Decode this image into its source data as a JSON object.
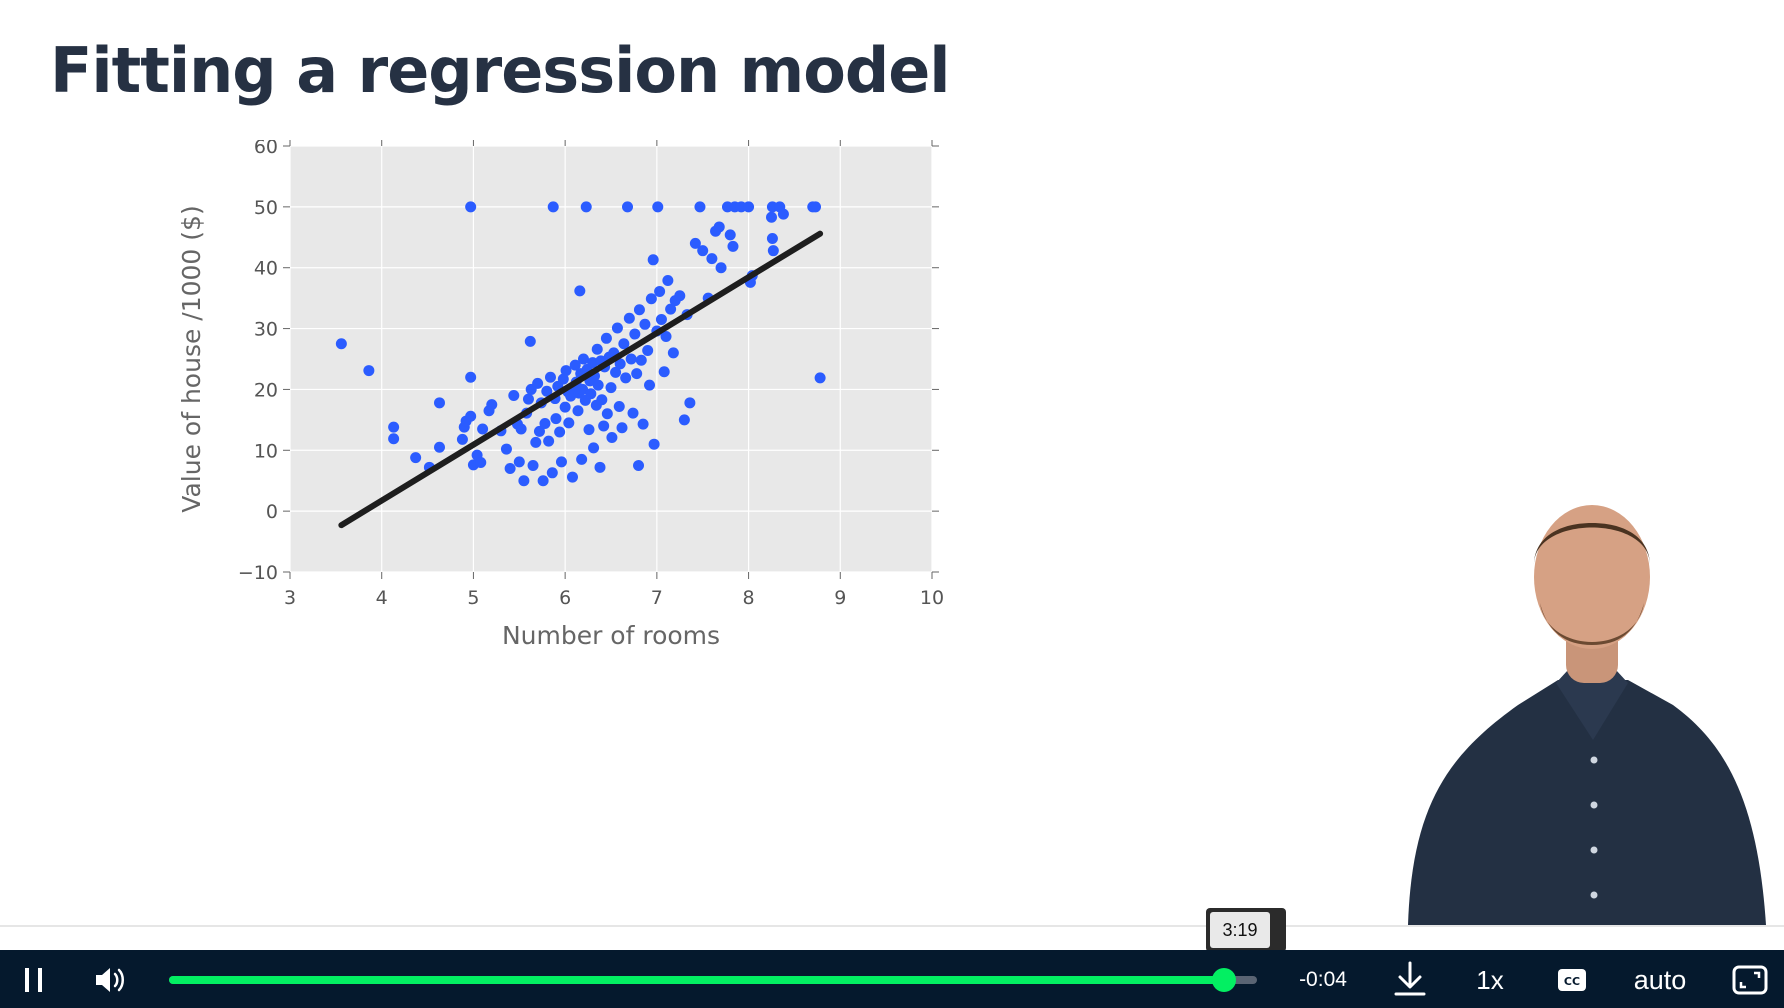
{
  "slide": {
    "title": "Fitting a regression model"
  },
  "chart_data": {
    "type": "scatter",
    "xlabel": "Number of rooms",
    "ylabel": "Value of house /1000 ($)",
    "xlim": [
      3,
      10
    ],
    "ylim": [
      -10,
      60
    ],
    "xticks": [
      "3",
      "4",
      "5",
      "6",
      "7",
      "8",
      "9",
      "10"
    ],
    "yticks": [
      "−10",
      "0",
      "10",
      "20",
      "30",
      "40",
      "50",
      "60"
    ],
    "grid": true,
    "colors": {
      "points": "#2b5cff",
      "line": "#1e1e1e",
      "background": "#e8e8e8"
    },
    "points": [
      [
        3.56,
        27.5
      ],
      [
        3.86,
        23.1
      ],
      [
        4.13,
        13.8
      ],
      [
        4.13,
        11.9
      ],
      [
        4.37,
        8.8
      ],
      [
        4.52,
        7.2
      ],
      [
        4.63,
        17.8
      ],
      [
        4.63,
        10.5
      ],
      [
        4.88,
        11.8
      ],
      [
        4.9,
        13.8
      ],
      [
        4.92,
        14.8
      ],
      [
        4.97,
        15.6
      ],
      [
        4.97,
        22.0
      ],
      [
        4.97,
        50.0
      ],
      [
        5.0,
        7.6
      ],
      [
        5.04,
        9.2
      ],
      [
        5.08,
        8.0
      ],
      [
        5.1,
        13.5
      ],
      [
        5.17,
        16.5
      ],
      [
        5.2,
        17.5
      ],
      [
        5.3,
        13.2
      ],
      [
        5.36,
        10.2
      ],
      [
        5.4,
        7.0
      ],
      [
        5.44,
        19.0
      ],
      [
        5.48,
        14.3
      ],
      [
        5.5,
        8.1
      ],
      [
        5.52,
        13.5
      ],
      [
        5.55,
        5.0
      ],
      [
        5.58,
        16.1
      ],
      [
        5.6,
        18.4
      ],
      [
        5.62,
        27.9
      ],
      [
        5.63,
        20.0
      ],
      [
        5.65,
        7.5
      ],
      [
        5.68,
        11.3
      ],
      [
        5.7,
        21.0
      ],
      [
        5.72,
        13.1
      ],
      [
        5.74,
        17.8
      ],
      [
        5.76,
        5.0
      ],
      [
        5.78,
        14.4
      ],
      [
        5.8,
        19.7
      ],
      [
        5.82,
        11.5
      ],
      [
        5.84,
        22.0
      ],
      [
        5.86,
        6.3
      ],
      [
        5.87,
        50.0
      ],
      [
        5.89,
        18.5
      ],
      [
        5.9,
        15.2
      ],
      [
        5.92,
        20.5
      ],
      [
        5.94,
        13.0
      ],
      [
        5.96,
        8.1
      ],
      [
        5.98,
        21.7
      ],
      [
        6.0,
        17.1
      ],
      [
        6.01,
        23.1
      ],
      [
        6.03,
        19.6
      ],
      [
        6.04,
        14.5
      ],
      [
        6.06,
        18.9
      ],
      [
        6.08,
        5.6
      ],
      [
        6.09,
        20.1
      ],
      [
        6.11,
        24.0
      ],
      [
        6.12,
        21.2
      ],
      [
        6.14,
        16.5
      ],
      [
        6.15,
        19.4
      ],
      [
        6.16,
        36.2
      ],
      [
        6.17,
        22.6
      ],
      [
        6.18,
        8.5
      ],
      [
        6.19,
        20.0
      ],
      [
        6.2,
        25.0
      ],
      [
        6.22,
        18.2
      ],
      [
        6.23,
        50.0
      ],
      [
        6.24,
        23.3
      ],
      [
        6.26,
        13.4
      ],
      [
        6.27,
        21.4
      ],
      [
        6.28,
        19.3
      ],
      [
        6.3,
        24.4
      ],
      [
        6.31,
        10.4
      ],
      [
        6.32,
        22.2
      ],
      [
        6.34,
        17.4
      ],
      [
        6.35,
        26.6
      ],
      [
        6.36,
        20.7
      ],
      [
        6.38,
        7.2
      ],
      [
        6.39,
        24.7
      ],
      [
        6.4,
        18.3
      ],
      [
        6.42,
        14.0
      ],
      [
        6.43,
        23.7
      ],
      [
        6.45,
        28.4
      ],
      [
        6.46,
        16.0
      ],
      [
        6.48,
        25.3
      ],
      [
        6.5,
        20.3
      ],
      [
        6.51,
        12.1
      ],
      [
        6.53,
        26.0
      ],
      [
        6.55,
        22.8
      ],
      [
        6.57,
        30.1
      ],
      [
        6.59,
        17.2
      ],
      [
        6.6,
        24.2
      ],
      [
        6.62,
        13.7
      ],
      [
        6.64,
        27.5
      ],
      [
        6.66,
        21.9
      ],
      [
        6.68,
        50.0
      ],
      [
        6.7,
        31.7
      ],
      [
        6.72,
        25.0
      ],
      [
        6.74,
        16.1
      ],
      [
        6.76,
        29.1
      ],
      [
        6.78,
        22.6
      ],
      [
        6.8,
        7.5
      ],
      [
        6.81,
        33.1
      ],
      [
        6.83,
        24.8
      ],
      [
        6.85,
        14.3
      ],
      [
        6.87,
        30.7
      ],
      [
        6.9,
        26.4
      ],
      [
        6.92,
        20.7
      ],
      [
        6.94,
        34.9
      ],
      [
        6.96,
        41.3
      ],
      [
        6.97,
        11.0
      ],
      [
        7.0,
        29.6
      ],
      [
        7.01,
        50.0
      ],
      [
        7.03,
        36.1
      ],
      [
        7.05,
        31.5
      ],
      [
        7.08,
        22.9
      ],
      [
        7.1,
        28.7
      ],
      [
        7.12,
        37.9
      ],
      [
        7.15,
        33.2
      ],
      [
        7.18,
        26.0
      ],
      [
        7.2,
        34.6
      ],
      [
        7.25,
        35.4
      ],
      [
        7.3,
        15.0
      ],
      [
        7.33,
        32.3
      ],
      [
        7.36,
        17.8
      ],
      [
        7.42,
        44.0
      ],
      [
        7.47,
        50.0
      ],
      [
        7.5,
        42.8
      ],
      [
        7.56,
        35.0
      ],
      [
        7.6,
        41.5
      ],
      [
        7.64,
        46.0
      ],
      [
        7.68,
        46.7
      ],
      [
        7.7,
        40.0
      ],
      [
        7.77,
        50.0
      ],
      [
        7.8,
        45.4
      ],
      [
        7.83,
        43.5
      ],
      [
        7.85,
        50.0
      ],
      [
        7.92,
        50.0
      ],
      [
        8.0,
        50.0
      ],
      [
        8.02,
        37.6
      ],
      [
        8.04,
        38.7
      ],
      [
        8.25,
        48.3
      ],
      [
        8.26,
        50.0
      ],
      [
        8.26,
        44.8
      ],
      [
        8.27,
        42.8
      ],
      [
        8.34,
        50.0
      ],
      [
        8.38,
        48.8
      ],
      [
        8.7,
        50.0
      ],
      [
        8.73,
        50.0
      ],
      [
        8.78,
        21.9
      ]
    ],
    "fit_line": {
      "x": [
        3.56,
        8.78
      ],
      "y": [
        -2.3,
        45.6
      ]
    }
  },
  "player": {
    "hover_time": "3:19",
    "time_remaining": "-0:04",
    "progress": 0.985,
    "speed_label": "1x",
    "quality_label": "auto",
    "colors": {
      "bar": "#05192d",
      "accent": "#03ef62"
    },
    "icons": {
      "pause": "pause-icon",
      "volume": "volume-icon",
      "download": "download-icon",
      "captions": "captions-icon",
      "fullscreen": "fullscreen-icon"
    }
  }
}
